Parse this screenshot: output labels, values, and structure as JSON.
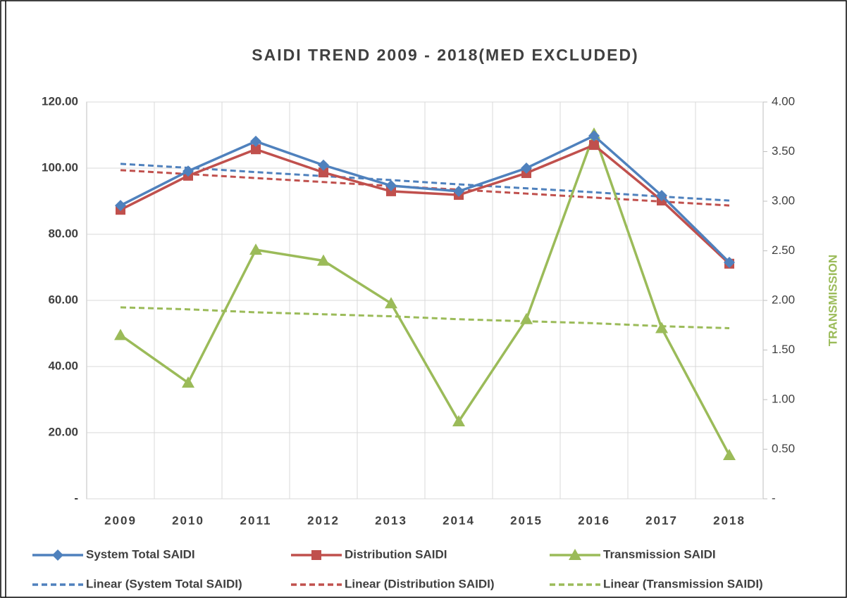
{
  "chart_data": {
    "type": "line",
    "title": "SAIDI TREND 2009 - 2018(MED EXCLUDED)",
    "y2_label": "TRANSMISSION",
    "categories": [
      "2009",
      "2010",
      "2011",
      "2012",
      "2013",
      "2014",
      "2015",
      "2016",
      "2017",
      "2018"
    ],
    "ylim": [
      0,
      120
    ],
    "yticks": [
      {
        "value": 0,
        "label": "-"
      },
      {
        "value": 20,
        "label": "20.00"
      },
      {
        "value": 40,
        "label": "40.00"
      },
      {
        "value": 60,
        "label": "60.00"
      },
      {
        "value": 80,
        "label": "80.00"
      },
      {
        "value": 100,
        "label": "100.00"
      },
      {
        "value": 120,
        "label": "120.00"
      }
    ],
    "y2lim": [
      0,
      4
    ],
    "y2ticks": [
      {
        "value": 0,
        "label": "-"
      },
      {
        "value": 0.5,
        "label": "0.50"
      },
      {
        "value": 1,
        "label": "1.00"
      },
      {
        "value": 1.5,
        "label": "1.50"
      },
      {
        "value": 2,
        "label": "2.00"
      },
      {
        "value": 2.5,
        "label": "2.50"
      },
      {
        "value": 3,
        "label": "3.00"
      },
      {
        "value": 3.5,
        "label": "3.50"
      },
      {
        "value": 4,
        "label": "4.00"
      }
    ],
    "grid": true,
    "legend": "bottom",
    "series": [
      {
        "name": "System Total SAIDI",
        "color": "#4f81bd",
        "marker": "diamond",
        "values": [
          88.7,
          99.1,
          108.1,
          100.9,
          94.7,
          93.0,
          100.0,
          109.8,
          91.7,
          71.5
        ]
      },
      {
        "name": "Distribution SAIDI",
        "color": "#c0504d",
        "marker": "square",
        "values": [
          87.4,
          97.7,
          105.7,
          98.7,
          93.0,
          91.9,
          98.5,
          107.0,
          90.2,
          71.1
        ]
      },
      {
        "name": "Transmission SAIDI",
        "color": "#9bbb59",
        "marker": "triangle",
        "axis": "y2",
        "values": [
          1.65,
          1.17,
          2.51,
          2.4,
          1.97,
          0.78,
          1.81,
          3.68,
          1.72,
          0.44
        ]
      },
      {
        "name": "Linear (System Total SAIDI)",
        "color": "#4f81bd",
        "dashed": true,
        "values": [
          101.3,
          100.1,
          98.8,
          97.6,
          96.4,
          95.1,
          93.9,
          92.7,
          91.4,
          90.2
        ]
      },
      {
        "name": "Linear (Distribution SAIDI)",
        "color": "#c0504d",
        "dashed": true,
        "values": [
          99.4,
          98.2,
          97.0,
          95.8,
          94.6,
          93.5,
          92.3,
          91.1,
          89.9,
          88.7
        ]
      },
      {
        "name": "Linear (Transmission SAIDI)",
        "color": "#9bbb59",
        "dashed": true,
        "axis": "y2",
        "values": [
          1.93,
          1.91,
          1.88,
          1.86,
          1.84,
          1.81,
          1.79,
          1.77,
          1.74,
          1.72
        ]
      }
    ]
  }
}
